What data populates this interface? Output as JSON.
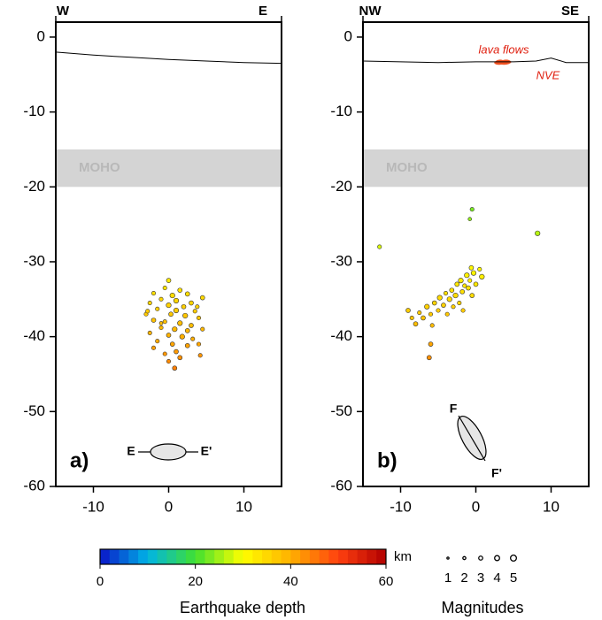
{
  "chart_data": [
    {
      "type": "scatter",
      "panel_label": "a)",
      "top_labels": [
        "W",
        "E"
      ],
      "section_labels": [
        "E",
        "E'"
      ],
      "moho_label": "MOHO",
      "moho_range": [
        -15,
        -20
      ],
      "xlim": [
        -15,
        15
      ],
      "ylim": [
        -60,
        2
      ],
      "xticks": [
        -10,
        0,
        10
      ],
      "yticks": [
        0,
        -10,
        -20,
        -30,
        -40,
        -50,
        -60
      ],
      "surface": {
        "x": [
          -15,
          -10,
          -5,
          0,
          5,
          10,
          15
        ],
        "y": [
          -2,
          -2.4,
          -2.7,
          -3,
          -3.2,
          -3.4,
          -3.5
        ]
      },
      "x": [
        0,
        -0.5,
        1.5,
        -2,
        0.5,
        2.5,
        -1,
        1,
        3,
        4.5,
        -2.5,
        0,
        2,
        -1.5,
        1,
        3.5,
        -3,
        0.3,
        2.2,
        4,
        -2,
        -0.5,
        1.5,
        3,
        -1,
        0.8,
        2.5,
        4.5,
        -2.5,
        0,
        1.8,
        3.2,
        -1.5,
        0.5,
        2.5,
        4,
        -2,
        1,
        -0.5,
        1.5,
        0,
        0.8,
        4.2,
        -1,
        3.8,
        -2.8
      ],
      "y": [
        -32.5,
        -33.5,
        -33.8,
        -34.2,
        -34.5,
        -34.3,
        -35,
        -35.2,
        -35.5,
        -34.8,
        -35.5,
        -35.8,
        -36,
        -36.3,
        -36.5,
        -36.6,
        -37,
        -37,
        -37.2,
        -37.5,
        -37.8,
        -38,
        -38.2,
        -38.5,
        -38.8,
        -39,
        -39.2,
        -39,
        -39.5,
        -39.8,
        -40,
        -40.3,
        -40.6,
        -41,
        -41.2,
        -41,
        -41.5,
        -42,
        -42.3,
        -42.8,
        -43.3,
        -44.2,
        -42.5,
        -38.2,
        -36,
        -36.6
      ],
      "magnitude": [
        3.5,
        3,
        3.5,
        3,
        4,
        3.5,
        3,
        4,
        3.5,
        3.5,
        3,
        4,
        3.5,
        3,
        4,
        3,
        3,
        3.5,
        4,
        3,
        3.5,
        3,
        4,
        3.5,
        3,
        4,
        3.5,
        3,
        3,
        3.5,
        4,
        3,
        3,
        3.5,
        3.5,
        3,
        3,
        3.5,
        3,
        3.5,
        3,
        3.5,
        3,
        2.5,
        3,
        3
      ]
    },
    {
      "type": "scatter",
      "panel_label": "b)",
      "top_labels": [
        "NW",
        "SE"
      ],
      "section_labels": [
        "F",
        "F'"
      ],
      "moho_label": "MOHO",
      "moho_range": [
        -15,
        -20
      ],
      "annotations": [
        "lava flows",
        "NVE"
      ],
      "xlim": [
        -15,
        15
      ],
      "ylim": [
        -60,
        2
      ],
      "xticks": [
        -10,
        0,
        10
      ],
      "yticks": [
        0,
        -10,
        -20,
        -30,
        -40,
        -50,
        -60
      ],
      "surface": {
        "x": [
          -15,
          -10,
          -5,
          0,
          5,
          8,
          10,
          12,
          15
        ],
        "y": [
          -3.2,
          -3.3,
          -3.4,
          -3.3,
          -3.3,
          -3.2,
          -2.8,
          -3.4,
          -3.4
        ]
      },
      "x": [
        -9,
        -8.5,
        -8,
        -7.5,
        -7,
        -6.5,
        -6,
        -5.5,
        -5,
        -4.8,
        -4.3,
        -4,
        -3.5,
        -3.2,
        -3,
        -2.7,
        -2.5,
        -2.2,
        -2,
        -1.8,
        -1.5,
        -1.2,
        -1,
        -0.8,
        -0.5,
        -0.3,
        0,
        0.5,
        0.8,
        -0.6,
        -1.7,
        -3.8,
        -5.8,
        -12.8,
        -0.5,
        -0.8,
        8.2,
        -6,
        -6.2
      ],
      "y": [
        -36.5,
        -37.5,
        -38.3,
        -36.8,
        -37.5,
        -36,
        -37,
        -35.5,
        -36.5,
        -34.8,
        -35.8,
        -34.2,
        -35,
        -33.8,
        -36,
        -34.5,
        -33,
        -35.5,
        -32.5,
        -34,
        -33.2,
        -31.8,
        -33.5,
        -32.5,
        -34.5,
        -31.5,
        -33,
        -31,
        -32,
        -30.8,
        -36.5,
        -37,
        -38.5,
        -28,
        -23,
        -24.3,
        -26.2,
        -41,
        -42.8
      ],
      "magnitude": [
        3.5,
        3,
        3.5,
        3,
        3.5,
        4,
        3,
        3.5,
        3,
        4,
        3.5,
        3,
        4,
        3.5,
        3,
        4,
        3.5,
        3,
        4,
        3.5,
        3,
        4,
        3.5,
        3,
        3.5,
        4,
        3.5,
        3,
        4,
        3.5,
        3,
        3,
        3,
        3,
        3,
        2.5,
        4,
        3.5,
        3.5
      ]
    }
  ],
  "colorbar": {
    "title": "Earthquake depth",
    "unit": "km",
    "lim": [
      0,
      60
    ],
    "ticks": [
      0,
      20,
      40,
      60
    ],
    "colors": [
      "#0a14c8",
      "#00b4e6",
      "#40e030",
      "#ffff00",
      "#ffb000",
      "#ff4010",
      "#b00000"
    ]
  },
  "magnitude_legend": {
    "title": "Magnitudes",
    "values": [
      1,
      2,
      3,
      4,
      5
    ]
  }
}
